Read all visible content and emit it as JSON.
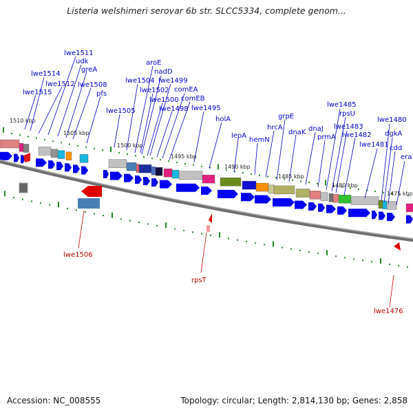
{
  "title": "Listeria welshimeri serovar 6b str. SLCC5334, complete genom...",
  "footer": {
    "accession": "Accession: NC_008555",
    "summary": "Topology: circular; Length: 2,814,130 bp; Genes: 2,858"
  },
  "colors": {
    "cds": "#0000ee",
    "label_forward": "#0000cc",
    "label_reverse": "#cc0000",
    "backbone": "#777777",
    "tick": "#228b22"
  },
  "kbp_labels": [
    "1510 kbp",
    "1505 kbp",
    "1500 kbp",
    "1495 kbp",
    "1490 kbp",
    "1485 kbp",
    "1480 kbp",
    "1475 kbp"
  ],
  "genes_forward": [
    "lwe1511",
    "udk",
    "lwe1514",
    "greA",
    "lwe1512",
    "lwe1508",
    "lwe1515",
    "pfs",
    "aroE",
    "nadD",
    "lwe1504",
    "lwe1499",
    "lwe1502",
    "comEA",
    "lwe1500",
    "comEB",
    "lwe1505",
    "lwe1498",
    "lwe1495",
    "holA",
    "grpE",
    "lepA",
    "hrcA",
    "dnaK",
    "hemN",
    "dnaJ",
    "prmA",
    "lwe1485",
    "rpsU",
    "lwe1483",
    "lwe1482",
    "lwe1481",
    "lwe1480",
    "dgkA",
    "cdd",
    "era"
  ],
  "genes_reverse": [
    "lwe1506",
    "rpsT",
    "lwe1476"
  ]
}
